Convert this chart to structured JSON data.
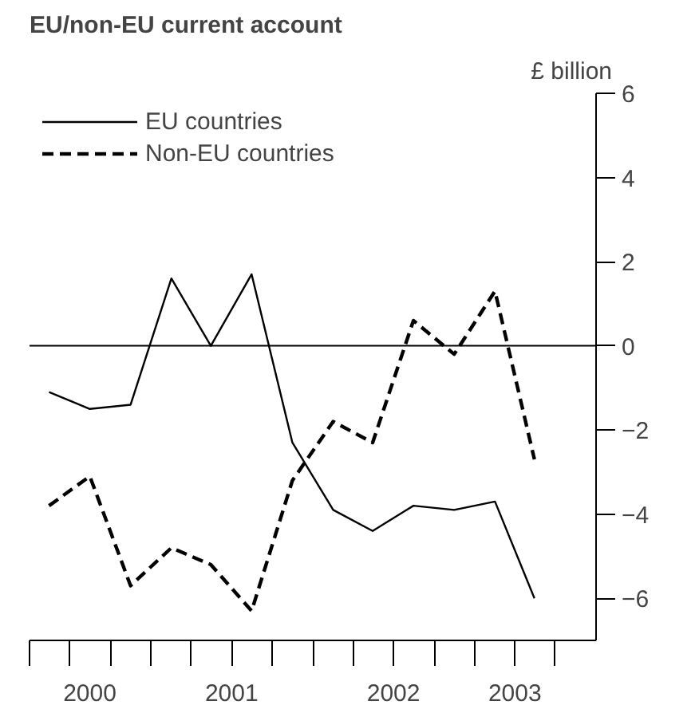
{
  "chart_data": {
    "type": "line",
    "title": "EU/non-EU current account",
    "ylabel": "£ billion",
    "x": [
      "2000-05-15",
      "2000-08-15",
      "2000-11-15",
      "2001-02-15",
      "2001-05-15",
      "2001-08-15",
      "2001-11-15",
      "2002-02-15",
      "2002-05-15",
      "2002-08-15",
      "2002-11-15",
      "2003-02-15",
      "2003-05-15"
    ],
    "series": [
      {
        "name": "EU countries",
        "color": "#000000",
        "line_style": "solid",
        "values": [
          -1.1,
          -1.5,
          -1.4,
          1.6,
          0.0,
          1.7,
          -2.3,
          -3.9,
          -4.4,
          -3.8,
          -3.9,
          -3.7,
          -6.0
        ]
      },
      {
        "name": "Non-EU countries",
        "color": "#000000",
        "line_style": "dashed",
        "values": [
          -3.8,
          -3.1,
          -5.7,
          -4.8,
          -5.2,
          -6.3,
          -3.2,
          -1.8,
          -2.3,
          0.6,
          -0.2,
          1.3,
          -2.7
        ]
      }
    ],
    "xlim": [
      "2000-04-01",
      "2003-10-01"
    ],
    "xticks": [
      {
        "value": "2000-04-01",
        "label": null
      },
      {
        "value": "2000-07-01",
        "label": null
      },
      {
        "value": "2000-10-01",
        "label": null
      },
      {
        "value": "2000-08-15",
        "label": "2000"
      },
      {
        "value": "2001-01-01",
        "label": null
      },
      {
        "value": "2001-04-01",
        "label": null
      },
      {
        "value": "2001-07-01",
        "label": "2001"
      },
      {
        "value": "2001-07-01",
        "label": null
      },
      {
        "value": "2001-10-01",
        "label": null
      },
      {
        "value": "2002-01-01",
        "label": null
      },
      {
        "value": "2002-04-01",
        "label": null
      },
      {
        "value": "2002-07-01",
        "label": "2002"
      },
      {
        "value": "2002-07-01",
        "label": null
      },
      {
        "value": "2002-10-01",
        "label": null
      },
      {
        "value": "2003-01-01",
        "label": null
      },
      {
        "value": "2003-04-01",
        "label": "2003"
      },
      {
        "value": "2003-04-01",
        "label": null
      },
      {
        "value": "2003-07-01",
        "label": null
      }
    ],
    "ylim": [
      -7,
      6
    ],
    "yticks": [
      -6,
      -4,
      -2,
      0,
      2,
      4,
      6
    ],
    "ref_lines": [
      {
        "axis": "y",
        "value": 0
      }
    ],
    "grid": false,
    "legend": "top left",
    "marker": "none"
  }
}
